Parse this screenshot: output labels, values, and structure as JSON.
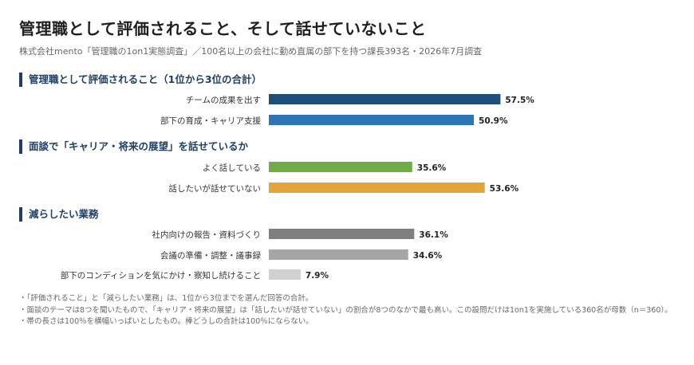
{
  "title": "管理職として評価されること、そして話せていないこと",
  "subtitle": "株式会社mento「管理職の1on1実態調査」／100名以上の会社に勤め直属の部下を持つ課長393名・2026年7月調査",
  "colors": {
    "navy": "#1f4e79",
    "blue": "#2e75b6",
    "green": "#70ad47",
    "orange": "#e3a43c",
    "gray_dark": "#7f7f7f",
    "gray_mid": "#a6a6a6",
    "gray_light": "#d0d0d0",
    "section_accent": "#1f3f63"
  },
  "chart_data": {
    "type": "bar",
    "orientation": "horizontal",
    "value_unit": "%",
    "xlim": [
      0,
      100
    ],
    "groups": [
      {
        "title": "管理職として評価されること（1位から3位の合計）",
        "bars": [
          {
            "label": "チームの成果を出す",
            "value": 57.5,
            "display": "57.5%",
            "color": "#1f4e79"
          },
          {
            "label": "部下の育成・キャリア支援",
            "value": 50.9,
            "display": "50.9%",
            "color": "#2e75b6"
          }
        ]
      },
      {
        "title": "面談で「キャリア・将来の展望」を話せているか",
        "bars": [
          {
            "label": "よく話している",
            "value": 35.6,
            "display": "35.6%",
            "color": "#70ad47"
          },
          {
            "label": "話したいが話せていない",
            "value": 53.6,
            "display": "53.6%",
            "color": "#e3a43c"
          }
        ]
      },
      {
        "title": "減らしたい業務",
        "bars": [
          {
            "label": "社内向けの報告・資料づくり",
            "value": 36.1,
            "display": "36.1%",
            "color": "#7f7f7f"
          },
          {
            "label": "会議の準備・調整・議事録",
            "value": 34.6,
            "display": "34.6%",
            "color": "#a6a6a6"
          },
          {
            "label": "部下のコンディションを気にかけ・察知し続けること",
            "value": 7.9,
            "display": "7.9%",
            "color": "#d0d0d0"
          }
        ]
      }
    ]
  },
  "notes": [
    "・「評価されること」と「減らしたい業務」は、1位から3位までを選んだ回答の合計。",
    "・面談のテーマは8つを聞いたもので、「キャリア・将来の展望」は「話したいが話せていない」の割合が8つのなかで最も高い。この設問だけは1on1を実施している360名が母数（n＝360）。",
    "・帯の長さは100％を横幅いっぱいとしたもの。棒どうしの合計は100％にならない。"
  ]
}
